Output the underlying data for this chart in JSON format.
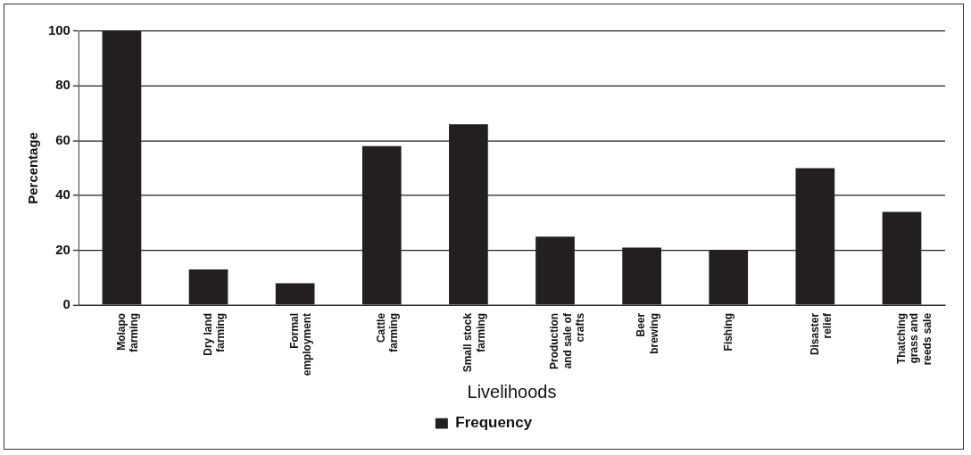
{
  "chart_data": {
    "type": "bar",
    "xlabel": "Livelihoods",
    "ylabel": "Percentage",
    "categories": [
      "Molapo farming",
      "Dry land farming",
      "Formal employment",
      "Cattle farming",
      "Small stock farming",
      "Production and sale of crafts",
      "Beer brewing",
      "Fishing",
      "Disaster relief",
      "Thatching grass and reeds sale"
    ],
    "series": [
      {
        "name": "Frequency",
        "color": "#231f20",
        "values": [
          100,
          13,
          8,
          58,
          66,
          25,
          21,
          20,
          50,
          34
        ]
      }
    ],
    "ylim": [
      0,
      100
    ],
    "yticks": [
      0,
      20,
      40,
      60,
      80,
      100
    ],
    "grid": "y",
    "legend": "bottom"
  }
}
